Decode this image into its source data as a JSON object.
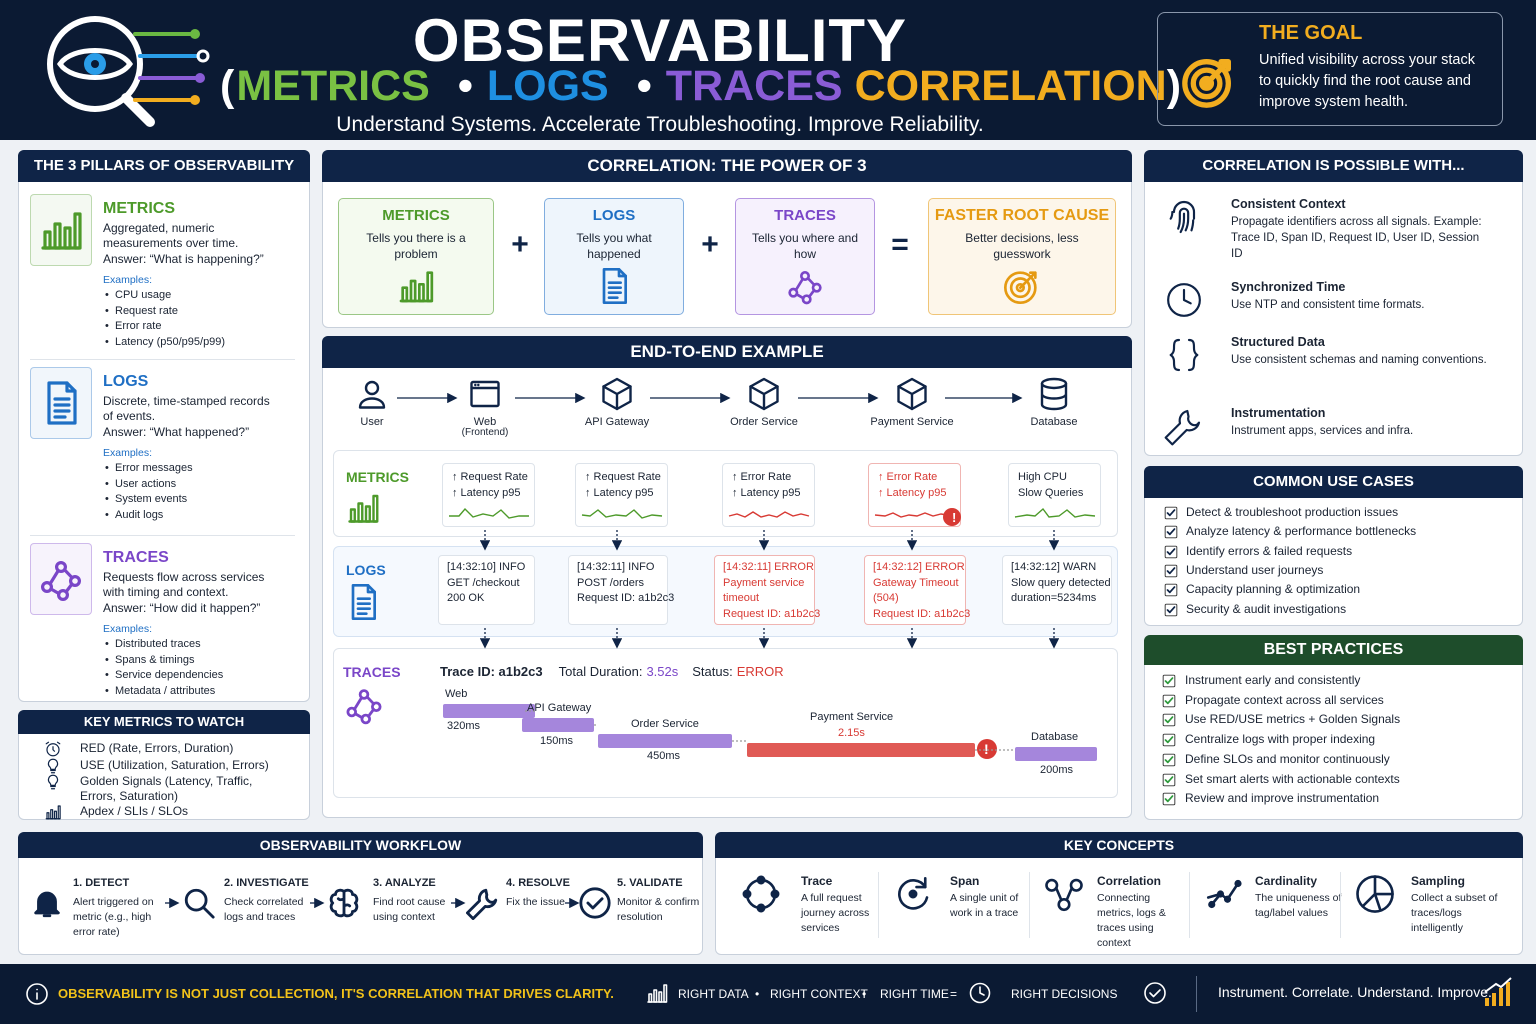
{
  "header": {
    "title": "OBSERVABILITY",
    "subtitle": [
      "(",
      "METRICS",
      "•",
      "LOGS",
      "•",
      "TRACES",
      "CORRELATION",
      ")"
    ],
    "tagline": "Understand Systems. Accelerate Troubleshooting. Improve Reliability."
  },
  "goal": {
    "title": "THE GOAL",
    "text": "Unified visibility across your stack to quickly find the root cause and improve system health."
  },
  "pillars": {
    "title": "THE 3 PILLARS OF OBSERVABILITY",
    "items": [
      {
        "name": "METRICS",
        "description": "Aggregated, numeric measurements over time.",
        "answer": "Answer:  “What is happening?”",
        "examples_label": "Examples:",
        "examples": [
          "CPU usage",
          "Request rate",
          "Error rate",
          "Latency (p50/p95/p99)"
        ]
      },
      {
        "name": "LOGS",
        "description": "Discrete, time-stamped records of events.",
        "answer": "Answer:  “What happened?”",
        "examples_label": "Examples:",
        "examples": [
          "Error messages",
          "User actions",
          "System events",
          "Audit logs"
        ]
      },
      {
        "name": "TRACES",
        "description": "Requests flow across services with timing and context.",
        "answer": "Answer:  “How did it happen?”",
        "examples_label": "Examples:",
        "examples": [
          "Distributed traces",
          "Spans & timings",
          "Service dependencies",
          "Metadata / attributes"
        ]
      }
    ]
  },
  "key_metrics": {
    "title": "KEY METRICS TO WATCH",
    "items": [
      "RED (Rate, Errors, Duration)",
      "USE (Utilization, Saturation, Errors)",
      "Golden Signals (Latency, Traffic, Errors, Saturation)",
      "Apdex / SLIs / SLOs"
    ]
  },
  "power": {
    "title": "CORRELATION: THE POWER OF 3",
    "boxes": [
      {
        "name": "METRICS",
        "text": "Tells you there is a problem"
      },
      {
        "name": "LOGS",
        "text": "Tells you what happened"
      },
      {
        "name": "TRACES",
        "text": "Tells you where and how"
      },
      {
        "name": "FASTER ROOT CAUSE",
        "text": "Better decisions, less guesswork"
      }
    ],
    "operators": [
      "+",
      "+",
      "="
    ]
  },
  "e2e": {
    "title": "END-TO-END EXAMPLE",
    "nodes": [
      {
        "label": "User"
      },
      {
        "label": "Web",
        "sub": "(Frontend)"
      },
      {
        "label": "API Gateway"
      },
      {
        "label": "Order Service"
      },
      {
        "label": "Payment Service"
      },
      {
        "label": "Database"
      }
    ],
    "metrics": {
      "label": "METRICS",
      "cards": [
        [
          "↑ Request Rate",
          "↑ Latency p95"
        ],
        [
          "↑ Request Rate",
          "↑ Latency p95"
        ],
        [
          "↑ Error Rate",
          "↑ Latency p95"
        ],
        [
          "↑ Error Rate",
          "↑ Latency p95"
        ],
        [
          "High CPU",
          "Slow Queries"
        ]
      ]
    },
    "logs": {
      "label": "LOGS",
      "cards": [
        [
          "[14:32:10]  INFO",
          "GET /checkout",
          "200 OK"
        ],
        [
          "[14:32:11]  INFO",
          "POST /orders",
          "Request ID: a1b2c3"
        ],
        [
          "[14:32:11]  ERROR",
          "Payment service",
          "timeout",
          "Request ID: a1b2c3"
        ],
        [
          "[14:32:12]  ERROR",
          "Gateway Timeout",
          "(504)",
          "Request ID: a1b2c3"
        ],
        [
          "[14:32:12]  WARN",
          "Slow query detected",
          "duration=5234ms"
        ]
      ]
    },
    "traces": {
      "label": "TRACES",
      "trace_id": "Trace ID: a1b2c3",
      "duration_label": "Total Duration:",
      "duration": "3.52s",
      "status_label": "Status:",
      "status": "ERROR",
      "spans": [
        {
          "name": "Web",
          "duration": "320ms"
        },
        {
          "name": "API Gateway",
          "duration": "150ms"
        },
        {
          "name": "Order Service",
          "duration": "450ms"
        },
        {
          "name": "Payment Service",
          "duration": "2.15s"
        },
        {
          "name": "Database",
          "duration": "200ms"
        }
      ]
    }
  },
  "correlation": {
    "title": "CORRELATION IS POSSIBLE WITH...",
    "items": [
      {
        "title": "Consistent Context",
        "text": "Propagate identifiers across all signals. Example: Trace ID, Span ID, Request ID, User ID, Session ID"
      },
      {
        "title": "Synchronized Time",
        "text": "Use NTP and consistent time formats."
      },
      {
        "title": "Structured Data",
        "text": "Use consistent schemas and naming conventions."
      },
      {
        "title": "Instrumentation",
        "text": "Instrument apps, services and infra."
      }
    ]
  },
  "use_cases": {
    "title": "COMMON USE CASES",
    "items": [
      "Detect & troubleshoot production issues",
      "Analyze latency & performance bottlenecks",
      "Identify errors & failed requests",
      "Understand user journeys",
      "Capacity planning & optimization",
      "Security & audit investigations"
    ]
  },
  "best_practices": {
    "title": "BEST PRACTICES",
    "items": [
      "Instrument early and consistently",
      "Propagate context across all services",
      "Use RED/USE metrics + Golden Signals",
      "Centralize logs with proper indexing",
      "Define SLOs and monitor continuously",
      "Set smart alerts with actionable contexts",
      "Review and improve instrumentation"
    ]
  },
  "workflow": {
    "title": "OBSERVABILITY WORKFLOW",
    "steps": [
      {
        "title": "1. DETECT",
        "text": "Alert triggered on metric (e.g., high error rate)"
      },
      {
        "title": "2. INVESTIGATE",
        "text": "Check correlated logs and traces"
      },
      {
        "title": "3. ANALYZE",
        "text": "Find root cause using context"
      },
      {
        "title": "4. RESOLVE",
        "text": "Fix the issue"
      },
      {
        "title": "5. VALIDATE",
        "text": "Monitor & confirm resolution"
      }
    ]
  },
  "concepts": {
    "title": "KEY CONCEPTS",
    "items": [
      {
        "title": "Trace",
        "text": "A full request journey across services"
      },
      {
        "title": "Span",
        "text": "A single unit of work in a trace"
      },
      {
        "title": "Correlation",
        "text": "Connecting metrics, logs & traces using context"
      },
      {
        "title": "Cardinality",
        "text": "The uniqueness of tag/label values"
      },
      {
        "title": "Sampling",
        "text": "Collect a subset of traces/logs intelligently"
      }
    ]
  },
  "footer": {
    "message": "OBSERVABILITY IS NOT JUST COLLECTION, IT'S CORRELATION THAT DRIVES CLARITY.",
    "equation": [
      "RIGHT DATA",
      "•",
      "RIGHT CONTEXT",
      "•",
      "RIGHT TIME",
      "=",
      "RIGHT DECISIONS"
    ],
    "motto": "Instrument. Correlate. Understand. Improve."
  }
}
